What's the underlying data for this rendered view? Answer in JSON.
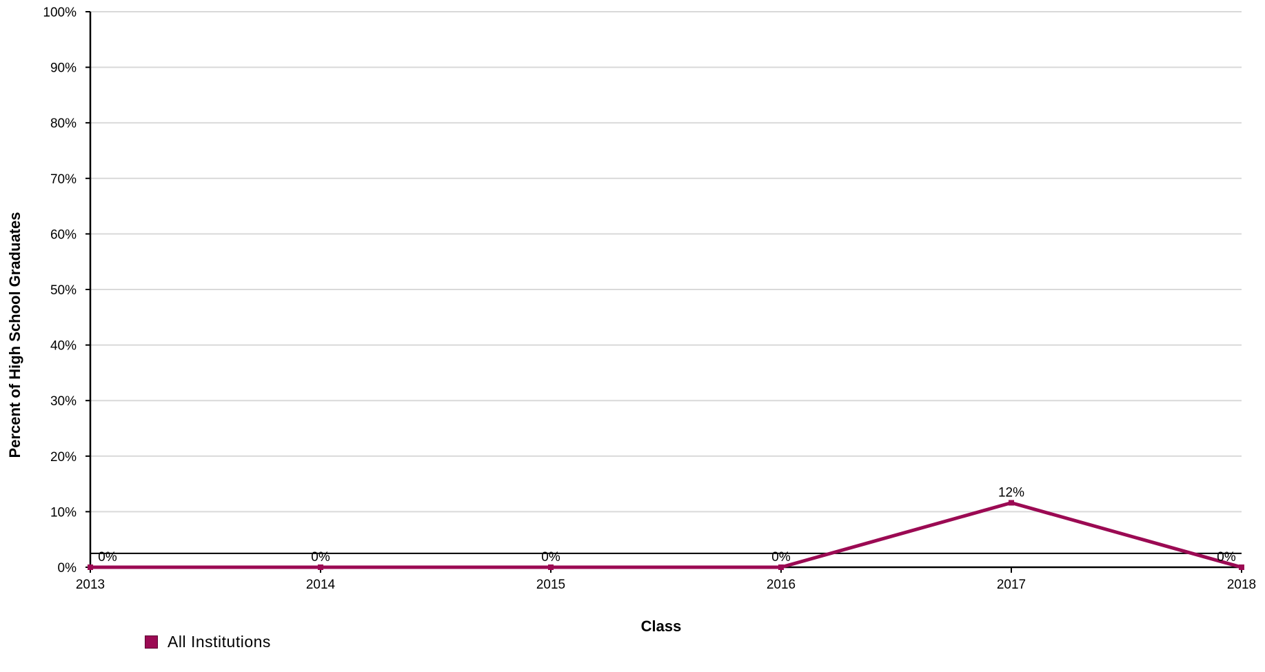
{
  "chart_data": {
    "type": "line",
    "title": "",
    "xlabel": "Class",
    "ylabel": "Percent of High School Graduates",
    "x": [
      "2013",
      "2014",
      "2015",
      "2016",
      "2017",
      "2018"
    ],
    "ylim": [
      0,
      100
    ],
    "yticks": [
      0,
      10,
      20,
      30,
      40,
      50,
      60,
      70,
      80,
      90,
      100
    ],
    "ytick_labels": [
      "0%",
      "10%",
      "20%",
      "30%",
      "40%",
      "50%",
      "60%",
      "70%",
      "80%",
      "90%",
      "100%"
    ],
    "grid": true,
    "reference_line": 2.5,
    "series": [
      {
        "name": "All Institutions",
        "color": "#9b0a53",
        "values": [
          0,
          0,
          0,
          0,
          11.6,
          0
        ],
        "labels": [
          "0%",
          "0%",
          "0%",
          "0%",
          "12%",
          "0%"
        ]
      }
    ],
    "legend": {
      "position": "bottom-left",
      "entries": [
        "All Institutions"
      ]
    }
  }
}
